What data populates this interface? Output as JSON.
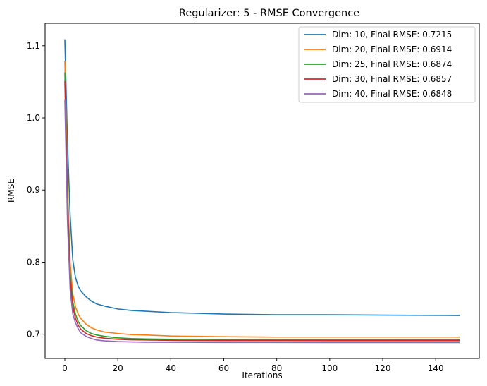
{
  "chart_data": {
    "type": "line",
    "title": "Regularizer: 5 - RMSE Convergence",
    "xlabel": "Iterations",
    "ylabel": "RMSE",
    "xlim": [
      -7.45,
      156.45
    ],
    "ylim": [
      0.6664,
      1.1311
    ],
    "xticks": [
      0,
      20,
      40,
      60,
      80,
      100,
      120,
      140
    ],
    "yticks": [
      0.7,
      0.8,
      0.9,
      1.0,
      1.1
    ],
    "ytick_labels": [
      "0.7",
      "0.8",
      "0.9",
      "1.0",
      "1.1"
    ],
    "grid": false,
    "legend_position": "top-right",
    "series": [
      {
        "name": "Dim: 10, Final RMSE: 0.7215",
        "color": "#1f77b4",
        "x": [
          0,
          1,
          2,
          3,
          4,
          5,
          6,
          8,
          10,
          12,
          15,
          20,
          25,
          30,
          40,
          50,
          60,
          80,
          100,
          120,
          149
        ],
        "y": [
          1.109,
          0.965,
          0.865,
          0.803,
          0.779,
          0.767,
          0.76,
          0.752,
          0.746,
          0.742,
          0.739,
          0.735,
          0.733,
          0.732,
          0.73,
          0.729,
          0.728,
          0.727,
          0.727,
          0.7265,
          0.726
        ]
      },
      {
        "name": "Dim: 20, Final RMSE: 0.6914",
        "color": "#ff7f0e",
        "x": [
          0,
          1,
          2,
          3,
          4,
          5,
          6,
          8,
          10,
          12,
          15,
          20,
          25,
          30,
          40,
          50,
          60,
          80,
          100,
          120,
          149
        ],
        "y": [
          1.079,
          0.91,
          0.8,
          0.756,
          0.738,
          0.728,
          0.722,
          0.714,
          0.709,
          0.706,
          0.703,
          0.701,
          0.6995,
          0.699,
          0.6975,
          0.697,
          0.6965,
          0.696,
          0.696,
          0.696,
          0.696
        ]
      },
      {
        "name": "Dim: 25, Final RMSE: 0.6874",
        "color": "#2ca02c",
        "x": [
          0,
          1,
          2,
          3,
          4,
          5,
          6,
          8,
          10,
          12,
          15,
          20,
          25,
          30,
          40,
          50,
          60,
          80,
          100,
          120,
          149
        ],
        "y": [
          1.063,
          0.89,
          0.785,
          0.745,
          0.728,
          0.718,
          0.712,
          0.705,
          0.701,
          0.699,
          0.697,
          0.695,
          0.694,
          0.6935,
          0.693,
          0.6928,
          0.6925,
          0.6923,
          0.6922,
          0.6921,
          0.692
        ]
      },
      {
        "name": "Dim: 30, Final RMSE: 0.6857",
        "color": "#d62728",
        "x": [
          0,
          1,
          2,
          3,
          4,
          5,
          6,
          8,
          10,
          12,
          15,
          20,
          25,
          30,
          40,
          50,
          60,
          80,
          100,
          120,
          149
        ],
        "y": [
          1.051,
          0.875,
          0.775,
          0.738,
          0.722,
          0.713,
          0.707,
          0.701,
          0.698,
          0.696,
          0.6945,
          0.693,
          0.6923,
          0.692,
          0.6915,
          0.6913,
          0.6912,
          0.6911,
          0.691,
          0.691,
          0.691
        ]
      },
      {
        "name": "Dim: 40, Final RMSE: 0.6848",
        "color": "#9467bd",
        "x": [
          0,
          1,
          2,
          3,
          4,
          5,
          6,
          8,
          10,
          12,
          15,
          20,
          25,
          30,
          40,
          50,
          60,
          80,
          100,
          120,
          149
        ],
        "y": [
          1.025,
          0.855,
          0.762,
          0.728,
          0.716,
          0.708,
          0.702,
          0.697,
          0.694,
          0.692,
          0.6908,
          0.6898,
          0.6893,
          0.689,
          0.6888,
          0.6887,
          0.6886,
          0.6886,
          0.6885,
          0.6885,
          0.6885
        ]
      }
    ]
  }
}
